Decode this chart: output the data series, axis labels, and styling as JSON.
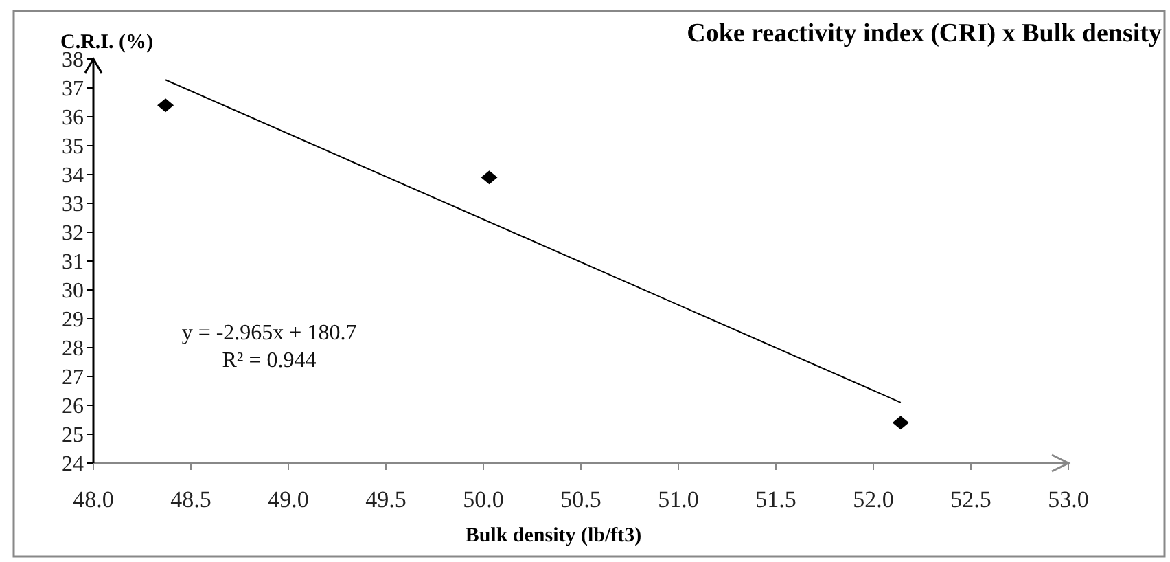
{
  "chart_data": {
    "type": "scatter",
    "title": "Coke reactivity index (CRI) x Bulk density",
    "xlabel": "Bulk density (lb/ft3)",
    "ylabel": "C.R.I. (%)",
    "annotations": [
      "y = -2.965x + 180.7",
      "R² = 0.944"
    ],
    "xlim": [
      48.0,
      53.0
    ],
    "xticks": [
      {
        "value": 48,
        "label": "48.0"
      },
      {
        "value": 48.5,
        "label": "48.5"
      },
      {
        "value": 49,
        "label": "49.0"
      },
      {
        "value": 49.5,
        "label": "49.5"
      },
      {
        "value": 50,
        "label": "50.0"
      },
      {
        "value": 50.5,
        "label": "50.5"
      },
      {
        "value": 51,
        "label": "51.0"
      },
      {
        "value": 51.5,
        "label": "51.5"
      },
      {
        "value": 52,
        "label": "52.0"
      },
      {
        "value": 52.5,
        "label": "52.5"
      },
      {
        "value": 53,
        "label": "53.0"
      }
    ],
    "ylim": [
      24,
      38
    ],
    "yticks": [
      24,
      25,
      26,
      27,
      28,
      29,
      30,
      31,
      32,
      33,
      34,
      35,
      36,
      37,
      38
    ],
    "grid": false,
    "series": [
      {
        "color": "#000000",
        "marker": "diamond",
        "x": [
          48.37,
          50.03,
          52.14
        ],
        "values": [
          36.4,
          33.9,
          25.4
        ]
      },
      {
        "type": "line",
        "color": "#000000",
        "marker": "none",
        "line_style": "solid",
        "x": [
          48.37,
          52.14
        ],
        "values": [
          37.28,
          26.1
        ]
      }
    ]
  }
}
